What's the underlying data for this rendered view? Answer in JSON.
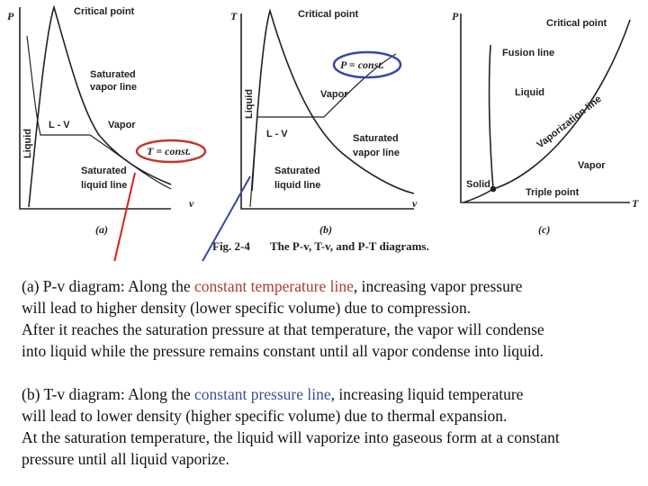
{
  "diagrams": {
    "a": {
      "y_axis": "P",
      "x_axis": "v",
      "critical_point": "Critical point",
      "sat_vapor_1": "Saturated",
      "sat_vapor_2": "vapor line",
      "lv": "L - V",
      "vapor": "Vapor",
      "liquid": "Liquid",
      "isotherm": "T = const.",
      "sat_liquid_1": "Saturated",
      "sat_liquid_2": "liquid line",
      "label": "(a)"
    },
    "b": {
      "y_axis": "T",
      "x_axis": "v",
      "critical_point": "Critical point",
      "isobar": "P = const.",
      "liquid": "Liquid",
      "vapor": "Vapor",
      "lv": "L - V",
      "sat_vapor_1": "Saturated",
      "sat_vapor_2": "vapor line",
      "sat_liquid_1": "Saturated",
      "sat_liquid_2": "liquid line",
      "label": "(b)"
    },
    "c": {
      "y_axis": "P",
      "x_axis": "T",
      "critical_point": "Critical point",
      "fusion": "Fusion line",
      "liquid": "Liquid",
      "vaporization": "Vaporization line",
      "vapor": "Vapor",
      "solid": "Solid",
      "triple": "Triple point",
      "label": "(c)"
    }
  },
  "caption": {
    "figure": "Fig. 2-4",
    "text": "The P-v, T-v, and P-T diagrams."
  },
  "paragraphs": {
    "a": {
      "line1_before": "(a) P-v diagram: Along the ",
      "line1_highlight": "constant temperature line",
      "line1_after": ", increasing vapor pressure",
      "line2": "will lead to higher density (lower specific volume) due to compression.",
      "line3": "After it reaches the saturation pressure at that temperature, the vapor will condense",
      "line4": "into liquid while the pressure remains constant until all vapor condense into liquid."
    },
    "b": {
      "line1_before": "(b) T-v diagram: Along the ",
      "line1_highlight": "constant pressure line",
      "line1_after": ", increasing liquid temperature",
      "line2": "will lead to lower density (higher specific volume) due to thermal expansion.",
      "line3": "At the saturation temperature, the liquid will vaporize into gaseous form at a constant",
      "line4": "pressure until all liquid vaporize."
    }
  }
}
